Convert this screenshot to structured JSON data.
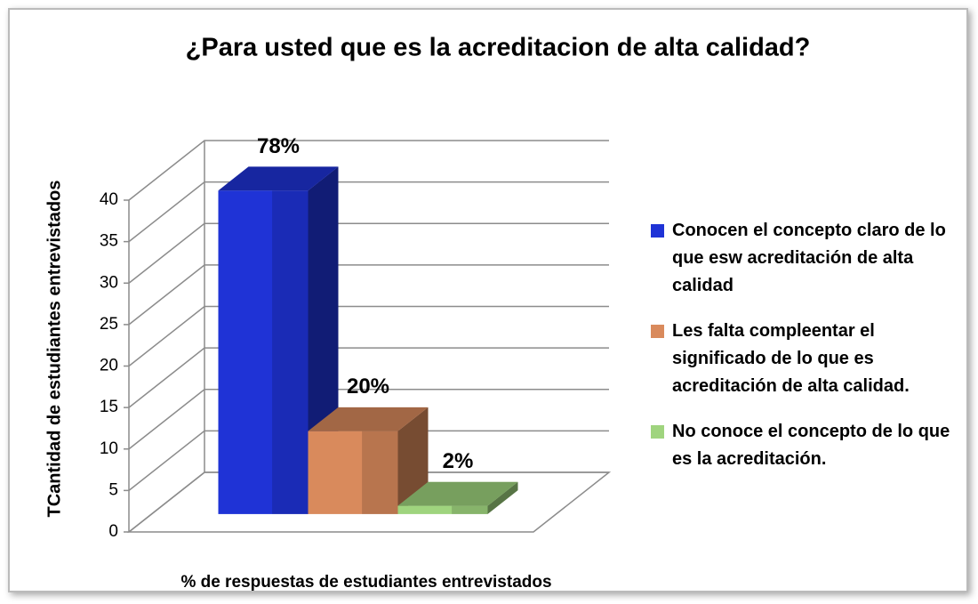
{
  "chart_data": {
    "type": "bar3d",
    "title": "¿Para usted que es la acreditacion de alta calidad?",
    "y_label": "TCantidad de estudiantes entrevistados",
    "x_label": "% de respuestas de estudiantes entrevistados",
    "series": [
      {
        "name": "Conocen el concepto claro de lo que esw acreditación de alta calidad",
        "color": "#1f33d6",
        "values": [
          39
        ],
        "value_labels": [
          "78%"
        ]
      },
      {
        "name": "Les falta compleentar el significado de lo que es acreditación de alta calidad.",
        "color": "#d98a5c",
        "values": [
          10
        ],
        "value_labels": [
          "20%"
        ]
      },
      {
        "name": "No conoce el concepto de lo que es la acreditación.",
        "color": "#9fd47e",
        "values": [
          1
        ],
        "value_labels": [
          "2%"
        ]
      }
    ],
    "ylim": [
      0,
      40
    ],
    "yticks": [
      0,
      5,
      10,
      15,
      20,
      25,
      30,
      35,
      40
    ],
    "grid": true,
    "legend": "right"
  }
}
